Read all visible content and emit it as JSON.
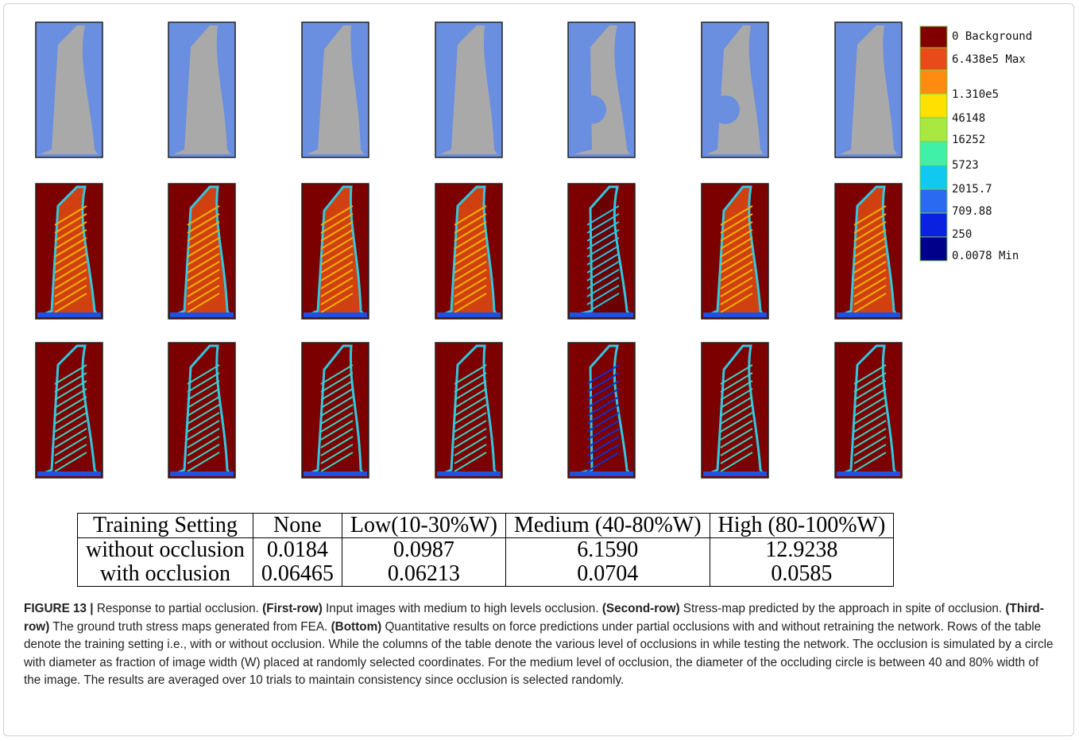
{
  "colorbar": {
    "labels": [
      "0 Background",
      "6.438e5 Max",
      "1.310e5",
      "46148",
      "16252",
      "5723",
      "2015.7",
      "709.88",
      "250",
      "0.0078 Min"
    ]
  },
  "table": {
    "header": [
      "Training Setting",
      "None",
      "Low(10-30%W)",
      "Medium (40-80%W)",
      "High (80-100%W)"
    ],
    "rows": [
      [
        "without occlusion",
        "0.0184",
        "0.0987",
        "6.1590",
        "12.9238"
      ],
      [
        "with occlusion",
        "0.06465",
        "0.06213",
        "0.0704",
        "0.0585"
      ]
    ]
  },
  "caption": {
    "segments": [
      {
        "text": "FIGURE 13 |",
        "bold": true
      },
      {
        "text": " Response to partial occlusion. ",
        "bold": false
      },
      {
        "text": "(First-row)",
        "bold": true
      },
      {
        "text": " Input images with medium to high levels occlusion. ",
        "bold": false
      },
      {
        "text": "(Second-row)",
        "bold": true
      },
      {
        "text": " Stress-map predicted by the approach in spite of occlusion. ",
        "bold": false
      },
      {
        "text": "(Third-row)",
        "bold": true
      },
      {
        "text": " The ground truth stress maps generated from FEA. ",
        "bold": false
      },
      {
        "text": "(Bottom)",
        "bold": true
      },
      {
        "text": " Quantitative results on force predictions under partial occlusions with and without retraining the network. Rows of the table denote the training setting i.e., with or without occlusion. While the columns of the table denote the various level of occlusions in while testing the network. The occlusion is simulated by a circle with diameter as fraction of image width (W) placed at randomly selected coordinates. For the medium level of occlusion, the diameter of the occluding circle is between 40 and 80% width of the image. The results are averaged over 10 trials to maintain consistency since occlusion is selected randomly.",
        "bold": false
      }
    ]
  }
}
